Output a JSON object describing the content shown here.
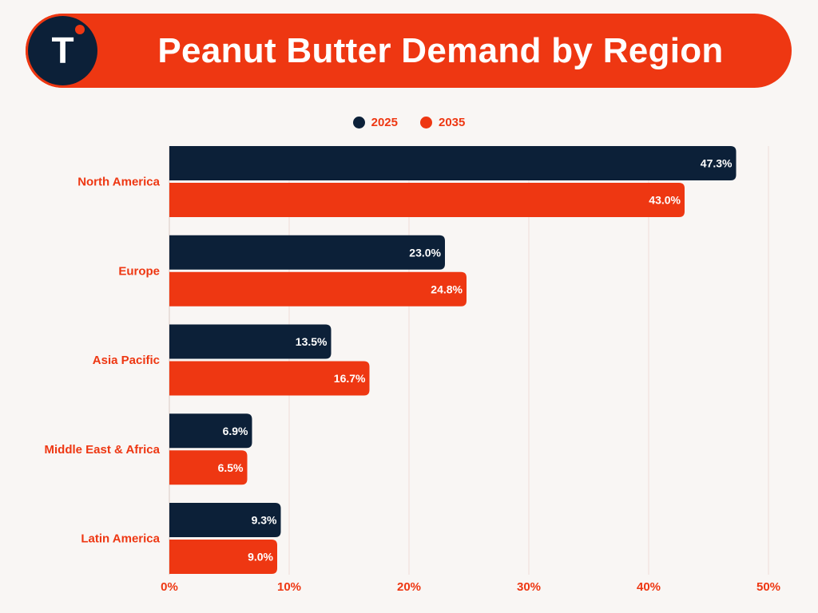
{
  "header": {
    "title": "Peanut Butter Demand by Region",
    "logo_letter": "T"
  },
  "colors": {
    "accent": "#ee3712",
    "navy": "#0c2038",
    "background": "#f9f6f4",
    "grid": "#f0dcd8"
  },
  "chart_data": {
    "type": "bar",
    "orientation": "horizontal",
    "categories": [
      "North America",
      "Europe",
      "Asia Pacific",
      "Middle East & Africa",
      "Latin America"
    ],
    "series": [
      {
        "name": "2025",
        "color": "#0c2038",
        "values": [
          47.3,
          23.0,
          13.5,
          6.9,
          9.3
        ],
        "labels": [
          "47.3%",
          "23.0%",
          "13.5%",
          "6.9%",
          "9.3%"
        ]
      },
      {
        "name": "2035",
        "color": "#ee3712",
        "values": [
          43.0,
          24.8,
          16.7,
          6.5,
          9.0
        ],
        "labels": [
          "43.0%",
          "24.8%",
          "16.7%",
          "6.5%",
          "9.0%"
        ]
      }
    ],
    "xlim": [
      0,
      50
    ],
    "xticks": [
      0,
      10,
      20,
      30,
      40,
      50
    ],
    "xtick_labels": [
      "0%",
      "10%",
      "20%",
      "30%",
      "40%",
      "50%"
    ],
    "grid": true,
    "legend_position": "top-center"
  }
}
